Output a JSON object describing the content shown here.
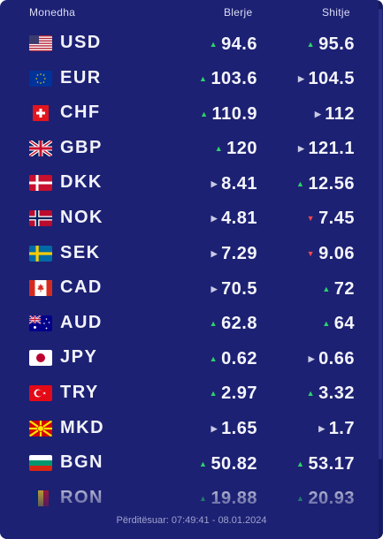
{
  "header": {
    "currency": "Monedha",
    "buy": "Blerje",
    "sell": "Shitje"
  },
  "rows": [
    {
      "code": "USD",
      "flag_icon": "us-flag-icon",
      "buy": "94.6",
      "buy_trend": "up",
      "sell": "95.6",
      "sell_trend": "up"
    },
    {
      "code": "EUR",
      "flag_icon": "eu-flag-icon",
      "buy": "103.6",
      "buy_trend": "up",
      "sell": "104.5",
      "sell_trend": "neutral"
    },
    {
      "code": "CHF",
      "flag_icon": "ch-flag-icon",
      "buy": "110.9",
      "buy_trend": "up",
      "sell": "112",
      "sell_trend": "neutral"
    },
    {
      "code": "GBP",
      "flag_icon": "gb-flag-icon",
      "buy": "120",
      "buy_trend": "up",
      "sell": "121.1",
      "sell_trend": "neutral"
    },
    {
      "code": "DKK",
      "flag_icon": "dk-flag-icon",
      "buy": "8.41",
      "buy_trend": "neutral",
      "sell": "12.56",
      "sell_trend": "up"
    },
    {
      "code": "NOK",
      "flag_icon": "no-flag-icon",
      "buy": "4.81",
      "buy_trend": "neutral",
      "sell": "7.45",
      "sell_trend": "down"
    },
    {
      "code": "SEK",
      "flag_icon": "se-flag-icon",
      "buy": "7.29",
      "buy_trend": "neutral",
      "sell": "9.06",
      "sell_trend": "down"
    },
    {
      "code": "CAD",
      "flag_icon": "ca-flag-icon",
      "buy": "70.5",
      "buy_trend": "neutral",
      "sell": "72",
      "sell_trend": "up"
    },
    {
      "code": "AUD",
      "flag_icon": "au-flag-icon",
      "buy": "62.8",
      "buy_trend": "up",
      "sell": "64",
      "sell_trend": "up"
    },
    {
      "code": "JPY",
      "flag_icon": "jp-flag-icon",
      "buy": "0.62",
      "buy_trend": "up",
      "sell": "0.66",
      "sell_trend": "neutral"
    },
    {
      "code": "TRY",
      "flag_icon": "tr-flag-icon",
      "buy": "2.97",
      "buy_trend": "up",
      "sell": "3.32",
      "sell_trend": "up"
    },
    {
      "code": "MKD",
      "flag_icon": "mk-flag-icon",
      "buy": "1.65",
      "buy_trend": "neutral",
      "sell": "1.7",
      "sell_trend": "neutral"
    },
    {
      "code": "BGN",
      "flag_icon": "bg-flag-icon",
      "buy": "50.82",
      "buy_trend": "up",
      "sell": "53.17",
      "sell_trend": "up"
    },
    {
      "code": "RON",
      "flag_icon": "ro-flag-icon",
      "buy": "19.88",
      "buy_trend": "up",
      "sell": "20.93",
      "sell_trend": "up"
    }
  ],
  "updated": "Përditësuar: 07:49:41 - 08.01.2024",
  "colors": {
    "background": "#1d2173",
    "up": "#2bd46c",
    "down": "#f04848",
    "neutral": "#c9cbe5",
    "text": "#f4f5fc"
  }
}
